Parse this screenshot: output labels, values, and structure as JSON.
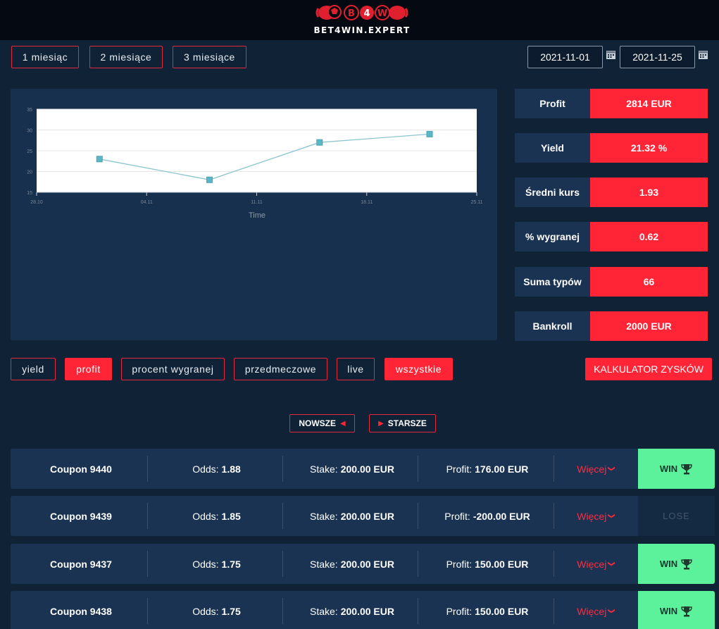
{
  "header": {
    "logo_text": "BET4WIN.EXPERT",
    "logo_letters": [
      "B",
      "4",
      "W"
    ]
  },
  "period_buttons": [
    "1 miesiąc",
    "2 miesiące",
    "3 miesiące"
  ],
  "date_range": {
    "from": "2021-11-01",
    "to": "2021-11-25"
  },
  "chart_data": {
    "type": "line",
    "x": [
      "2021-11-01",
      "2021-11-08",
      "2021-11-15",
      "2021-11-22"
    ],
    "series": [
      {
        "values": [
          23,
          18,
          27,
          29
        ],
        "color": "#8cc4cf"
      }
    ],
    "x_ticks": [
      "28.10",
      "04.11",
      "11.11",
      "18.11",
      "25.11"
    ],
    "y_ticks": [
      "15",
      "20",
      "25",
      "30",
      "35"
    ],
    "xlabel": "Time",
    "ylabel": "",
    "ylim": [
      15,
      35
    ],
    "grid": true
  },
  "stats": [
    {
      "label": "Profit",
      "value": "2814 EUR"
    },
    {
      "label": "Yield",
      "value": "21.32 %"
    },
    {
      "label": "Średni kurs",
      "value": "1.93"
    },
    {
      "label": "% wygranej",
      "value": "0.62"
    },
    {
      "label": "Suma typów",
      "value": "66"
    },
    {
      "label": "Bankroll",
      "value": "2000 EUR"
    }
  ],
  "filters": [
    {
      "label": "yield",
      "active": false
    },
    {
      "label": "profit",
      "active": true
    },
    {
      "label": "procent wygranej",
      "active": false
    },
    {
      "label": "przedmeczowe",
      "active": false
    },
    {
      "label": "live",
      "active": false
    },
    {
      "label": "wszystkie",
      "active": true
    }
  ],
  "calculator_label": "KALKULATOR ZYSKÓW",
  "pagination": {
    "newer": "NOWSZE",
    "older": "STARSZE"
  },
  "coupon_labels": {
    "odds": "Odds:",
    "stake": "Stake:",
    "profit": "Profit:",
    "more": "Więcej"
  },
  "coupons": [
    {
      "name": "Coupon 9440",
      "odds": "1.88",
      "stake": "200.00 EUR",
      "profit": "176.00 EUR",
      "status": "WIN"
    },
    {
      "name": "Coupon 9439",
      "odds": "1.85",
      "stake": "200.00 EUR",
      "profit": "-200.00 EUR",
      "status": "LOSE"
    },
    {
      "name": "Coupon 9437",
      "odds": "1.75",
      "stake": "200.00 EUR",
      "profit": "150.00 EUR",
      "status": "WIN"
    },
    {
      "name": "Coupon 9438",
      "odds": "1.75",
      "stake": "200.00 EUR",
      "profit": "150.00 EUR",
      "status": "WIN"
    }
  ],
  "colors": {
    "accent": "#ff2436",
    "win": "#5cf29c",
    "background": "#0f2236",
    "panel": "#1a3352"
  }
}
